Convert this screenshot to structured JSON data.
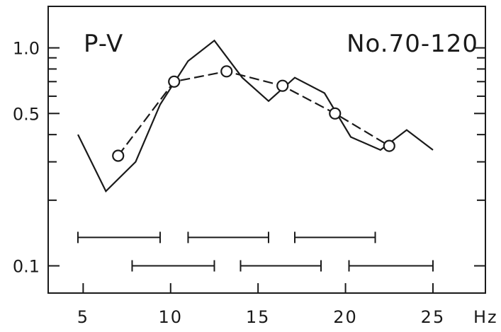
{
  "chart_data": {
    "type": "line",
    "title_left": "P-V",
    "title_right": "No.70-120",
    "x_unit": "Hz",
    "y_scale": "log",
    "xlim": [
      3,
      28
    ],
    "ylim": [
      0.075,
      1.55
    ],
    "x_ticks": [
      5,
      10,
      15,
      20,
      25
    ],
    "x_tick_labels": [
      "5",
      "10",
      "15",
      "20",
      "25"
    ],
    "y_ticks": [
      0.1,
      0.5,
      1.0
    ],
    "y_tick_labels": [
      "0.1",
      "0.5",
      "1.0"
    ],
    "y_minor_ticks": [
      0.2,
      0.3,
      0.4,
      0.6,
      0.7,
      0.8,
      0.9
    ],
    "grid": false,
    "series": [
      {
        "style": "solid",
        "x": [
          4.7,
          6.3,
          8.0,
          9.4,
          11.0,
          12.5,
          14.1,
          15.6,
          17.1,
          18.8,
          20.3,
          22.0,
          23.5,
          25.0
        ],
        "y": [
          0.4,
          0.22,
          0.3,
          0.55,
          0.87,
          1.08,
          0.73,
          0.57,
          0.73,
          0.62,
          0.39,
          0.34,
          0.42,
          0.34
        ]
      },
      {
        "style": "dashed",
        "marker": "circle",
        "x": [
          7.0,
          10.2,
          13.2,
          16.4,
          19.4,
          22.5
        ],
        "y": [
          0.32,
          0.7,
          0.78,
          0.67,
          0.5,
          0.355
        ]
      }
    ],
    "bands": [
      {
        "x": [
          4.7,
          9.4
        ],
        "y": 0.135
      },
      {
        "x": [
          11.0,
          15.6
        ],
        "y": 0.135
      },
      {
        "x": [
          17.1,
          21.7
        ],
        "y": 0.135
      },
      {
        "x": [
          7.8,
          12.5
        ],
        "y": 0.1
      },
      {
        "x": [
          14.0,
          18.6
        ],
        "y": 0.1
      },
      {
        "x": [
          20.2,
          25.0
        ],
        "y": 0.1
      }
    ]
  }
}
